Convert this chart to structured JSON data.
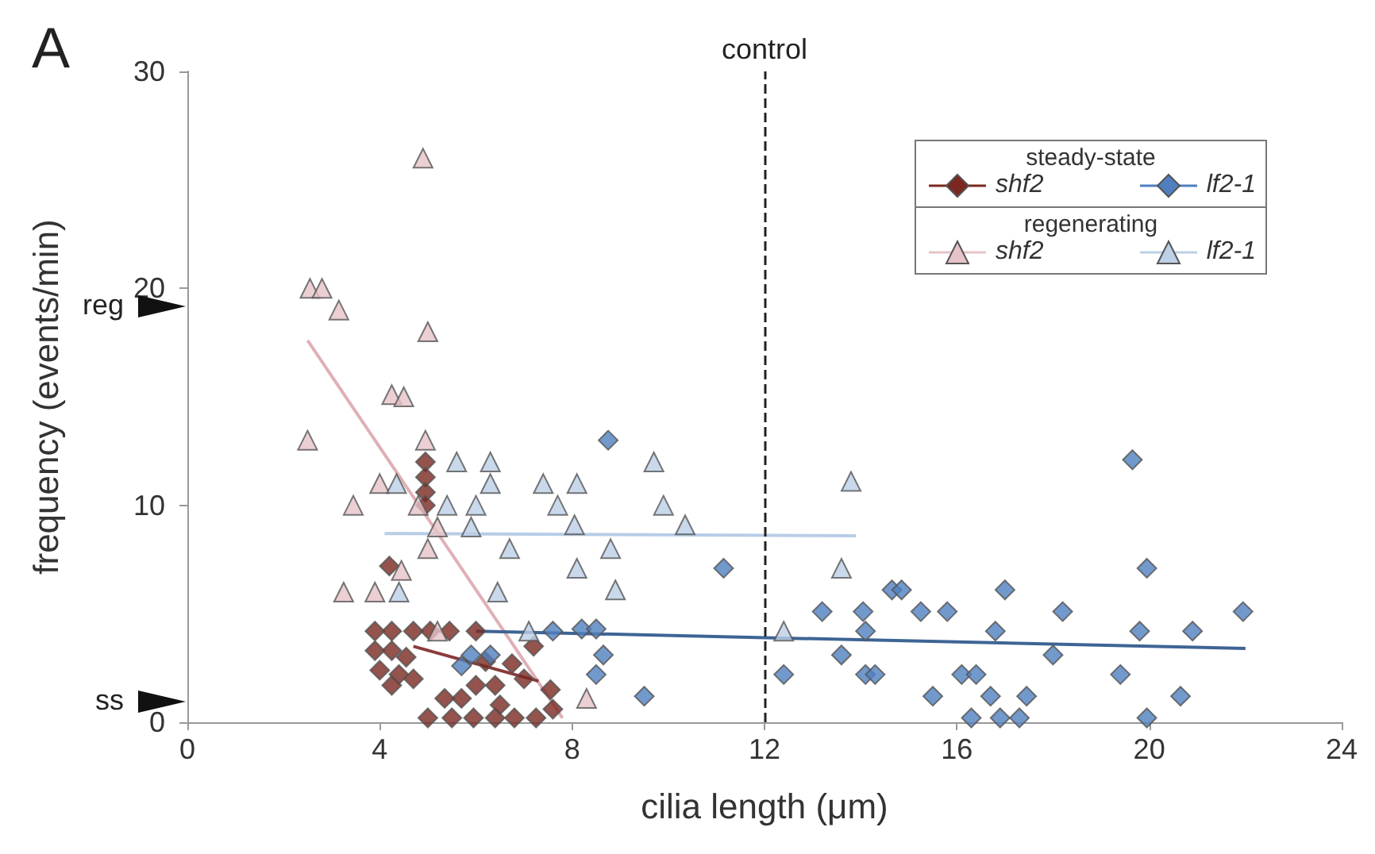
{
  "chart_data": {
    "type": "scatter",
    "xlabel": "cilia length (μm)",
    "ylabel": "frequency (events/min)",
    "xlim": [
      0,
      24
    ],
    "xticks": [
      0,
      4,
      8,
      12,
      16,
      20,
      24
    ],
    "ylim": [
      0,
      30
    ],
    "yticks": [
      0,
      10,
      20,
      30
    ],
    "grid": false,
    "legend": "top right",
    "legend_title": [
      "steady-state",
      "regenerating"
    ],
    "annotations": [
      "A",
      "reg",
      "ss"
    ],
    "ref_lines": [
      {
        "axis": "x",
        "value": 12,
        "label": "control",
        "color": "#222222",
        "line_style": "dashed"
      }
    ],
    "series": [
      {
        "name": "shf2",
        "color": "#7a2820",
        "marker": "diamond",
        "x": [
          4.95,
          4.95,
          4.95,
          4.95,
          4.2,
          3.9,
          4.25,
          4.7,
          5.05,
          5.45,
          3.9,
          4.25,
          4.55,
          4.0,
          4.4,
          4.7,
          4.25,
          5.35,
          5.7,
          5.0,
          5.5,
          5.95,
          6.4,
          6.8,
          7.25,
          6.0,
          6.4,
          7.0,
          6.75,
          7.2,
          7.55,
          7.6,
          6.5,
          6.2,
          6.0
        ],
        "values": [
          12,
          11.3,
          10.6,
          10,
          7.2,
          4.2,
          4.2,
          4.2,
          4.2,
          4.2,
          3.3,
          3.3,
          3,
          2.4,
          2.2,
          2,
          1.7,
          1.1,
          1.1,
          0.2,
          0.2,
          0.2,
          0.2,
          0.2,
          0.2,
          1.7,
          1.7,
          2,
          2.7,
          3.5,
          1.5,
          0.6,
          0.8,
          2.8,
          4.2
        ]
      },
      {
        "name": "lf2-1",
        "color": "#4f7fbf",
        "marker": "diamond",
        "x": [
          5.9,
          6.3,
          5.7,
          7.6,
          8.75,
          8.2,
          8.5,
          8.65,
          8.5,
          9.5,
          11.15,
          12.4,
          13.2,
          13.6,
          14.05,
          14.1,
          14.1,
          14.3,
          14.65,
          14.85,
          15.25,
          15.5,
          15.8,
          19.65,
          19.95,
          17.0,
          18.2,
          21.95,
          16.8,
          19.8,
          20.9,
          18.0,
          16.1,
          16.4,
          19.4,
          16.7,
          17.45,
          20.65,
          16.3,
          16.9,
          17.3,
          19.95
        ],
        "values": [
          3.1,
          3.1,
          2.6,
          4.2,
          13,
          4.3,
          4.3,
          3.1,
          2.2,
          1.2,
          7.1,
          2.2,
          5.1,
          3.1,
          5.1,
          4.2,
          2.2,
          2.2,
          6.1,
          6.1,
          5.1,
          1.2,
          5.1,
          12.1,
          7.1,
          6.1,
          5.1,
          5.1,
          4.2,
          4.2,
          4.2,
          3.1,
          2.2,
          2.2,
          2.2,
          1.2,
          1.2,
          1.2,
          0.2,
          0.2,
          0.2,
          0.2
        ]
      },
      {
        "name": "shf2",
        "color": "#e6c3c8",
        "marker": "triangle",
        "x": [
          4.9,
          2.55,
          2.8,
          3.15,
          5.0,
          4.25,
          4.5,
          2.5,
          4.95,
          4.0,
          3.45,
          4.8,
          5.2,
          5.0,
          3.25,
          3.9,
          4.45,
          5.2,
          8.3
        ],
        "values": [
          26,
          20,
          20,
          19,
          18,
          15.1,
          15,
          13,
          13,
          11,
          10,
          10,
          9,
          8,
          6,
          6,
          7,
          4.2,
          1.1
        ]
      },
      {
        "name": "lf2-1",
        "color": "#bcd0e6",
        "marker": "triangle",
        "x": [
          5.6,
          6.3,
          6.3,
          5.4,
          6.0,
          5.9,
          7.4,
          7.7,
          6.7,
          6.45,
          4.35,
          4.4,
          7.1,
          8.1,
          8.05,
          9.7,
          9.9,
          10.35,
          8.8,
          8.1,
          8.9,
          13.8,
          13.6,
          12.4
        ],
        "values": [
          12,
          12,
          11,
          10,
          10,
          9,
          11,
          10,
          8,
          6,
          11,
          6,
          4.2,
          11,
          9.1,
          12,
          10,
          9.1,
          8,
          7.1,
          6.1,
          11.1,
          7.1,
          4.2
        ]
      },
      {
        "type": "line",
        "color": "#e0b0b6",
        "marker": "none",
        "x": [
          2.5,
          7.8
        ],
        "values": [
          17.6,
          0.2
        ]
      },
      {
        "type": "line",
        "color": "#b8cde6",
        "marker": "none",
        "x": [
          4.1,
          13.9
        ],
        "values": [
          8.7,
          8.6
        ]
      },
      {
        "type": "line",
        "color": "#8b3a3a",
        "marker": "none",
        "x": [
          4.7,
          7.3
        ],
        "values": [
          3.5,
          1.9
        ]
      },
      {
        "type": "line",
        "color": "#3e6494",
        "marker": "none",
        "x": [
          6.0,
          22.0
        ],
        "values": [
          4.2,
          3.4
        ]
      }
    ]
  }
}
